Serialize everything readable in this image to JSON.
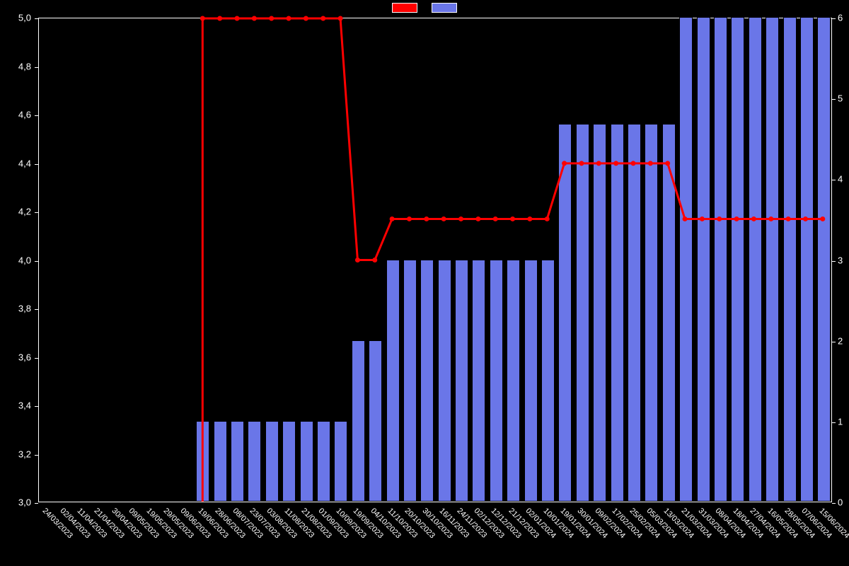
{
  "chart": {
    "type": "combo-bar-line",
    "background_color": "#000000",
    "left_axis": {
      "min": 3.0,
      "max": 5.0,
      "ticks": [
        3.0,
        3.2,
        3.4,
        3.6,
        3.8,
        4.0,
        4.2,
        4.4,
        4.6,
        4.8,
        5.0
      ],
      "tick_labels": [
        "3,0",
        "3,2",
        "3,4",
        "3,6",
        "3,8",
        "4,0",
        "4,2",
        "4,4",
        "4,6",
        "4,8",
        "5,0"
      ],
      "label_color": "#ffffff",
      "label_fontsize": 13
    },
    "right_axis": {
      "min": 0,
      "max": 6,
      "ticks": [
        0,
        1,
        2,
        3,
        4,
        5,
        6
      ],
      "tick_labels": [
        "0",
        "1",
        "2",
        "3",
        "4",
        "5",
        "6"
      ],
      "label_color": "#ffffff",
      "label_fontsize": 13
    },
    "x_categories": [
      "24/03/2023",
      "02/04/2023",
      "11/04/2023",
      "21/04/2023",
      "30/04/2023",
      "09/05/2023",
      "19/05/2023",
      "29/05/2023",
      "09/06/2023",
      "19/06/2023",
      "28/06/2023",
      "08/07/2023",
      "23/07/2023",
      "03/08/2023",
      "11/08/2023",
      "21/08/2023",
      "01/09/2023",
      "10/09/2023",
      "19/09/2023",
      "04/10/2023",
      "11/10/2023",
      "20/10/2023",
      "30/10/2023",
      "16/11/2023",
      "24/11/2023",
      "02/12/2023",
      "12/12/2023",
      "21/12/2023",
      "02/01/2024",
      "10/01/2024",
      "19/01/2024",
      "30/01/2024",
      "09/02/2024",
      "17/02/2024",
      "25/02/2024",
      "05/03/2024",
      "13/03/2024",
      "21/03/2024",
      "31/03/2024",
      "08/04/2024",
      "18/04/2024",
      "27/04/2024",
      "16/05/2024",
      "28/05/2024",
      "07/06/2024",
      "15/06/2024"
    ],
    "x_label_fontsize": 11,
    "x_label_rotation": 45,
    "bar_series": {
      "color": "#6a76e8",
      "border_color": "#000000",
      "values": [
        0,
        0,
        0,
        0,
        0,
        0,
        0,
        0,
        0,
        1,
        1,
        1,
        1,
        1,
        1,
        1,
        1,
        1,
        2,
        2,
        3,
        3,
        3,
        3,
        3,
        3,
        3,
        3,
        3,
        3,
        4.68,
        4.68,
        4.68,
        4.68,
        4.68,
        4.68,
        4.68,
        6,
        6,
        6,
        6,
        6,
        6,
        6,
        6,
        6
      ],
      "bar_width_ratio": 0.78
    },
    "line_series": {
      "color": "#ff0000",
      "marker_color": "#ff0000",
      "line_width": 3,
      "marker_radius": 3.5,
      "values": [
        null,
        null,
        null,
        null,
        null,
        null,
        null,
        null,
        null,
        5.0,
        5.0,
        5.0,
        5.0,
        5.0,
        5.0,
        5.0,
        5.0,
        5.0,
        4.0,
        4.0,
        4.17,
        4.17,
        4.17,
        4.17,
        4.17,
        4.17,
        4.17,
        4.17,
        4.17,
        4.17,
        4.4,
        4.4,
        4.4,
        4.4,
        4.4,
        4.4,
        4.4,
        4.17,
        4.17,
        4.17,
        4.17,
        4.17,
        4.17,
        4.17,
        4.17,
        4.17
      ]
    },
    "legend": {
      "line_swatch_color": "#ff0000",
      "bar_swatch_color": "#6a76e8",
      "swatch_border_color": "#ffffff"
    }
  }
}
